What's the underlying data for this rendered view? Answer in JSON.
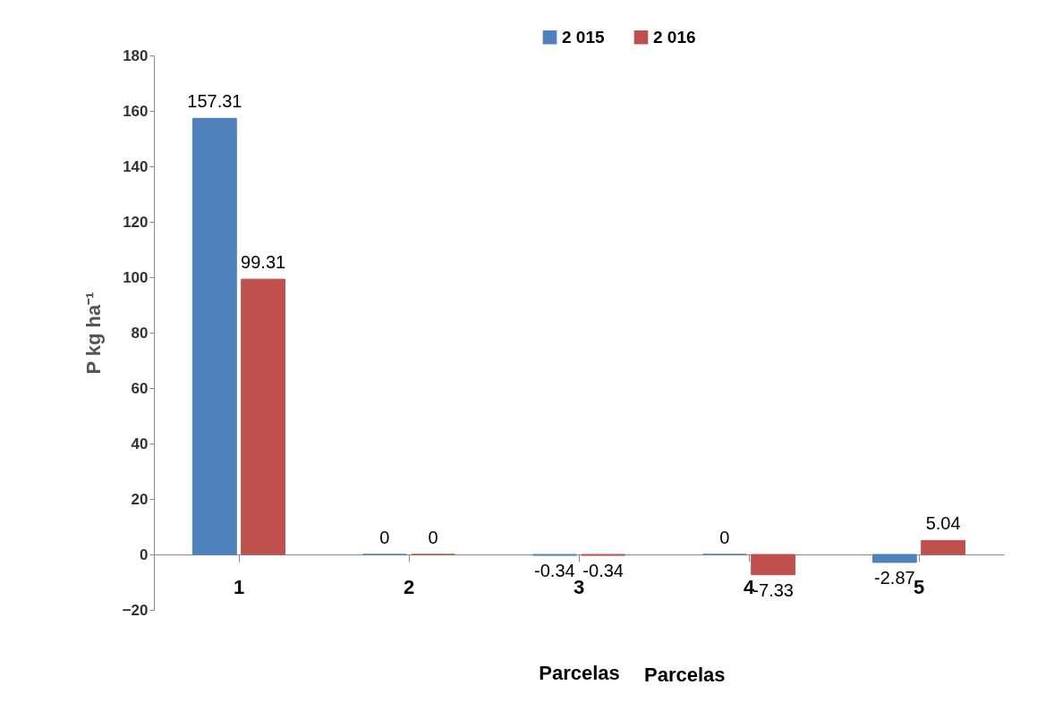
{
  "chart_data": {
    "type": "bar",
    "categories": [
      "1",
      "2",
      "3",
      "4",
      "5"
    ],
    "series": [
      {
        "name": "2 015",
        "color": "#4f81bd",
        "values": [
          157.31,
          0,
          -0.34,
          0,
          -2.87
        ]
      },
      {
        "name": "2 016",
        "color": "#c0504d",
        "values": [
          99.31,
          0,
          -0.34,
          -7.33,
          5.04
        ]
      }
    ],
    "ylim": [
      -20,
      180
    ],
    "yticks": [
      -20,
      0,
      20,
      40,
      60,
      80,
      100,
      120,
      140,
      160,
      180
    ],
    "ylabel": "P kg ha⁻¹",
    "xlabel": "Parcelas",
    "annotations": [
      "Parcelas"
    ],
    "data_labels": true,
    "legend": "top",
    "grid": false
  }
}
